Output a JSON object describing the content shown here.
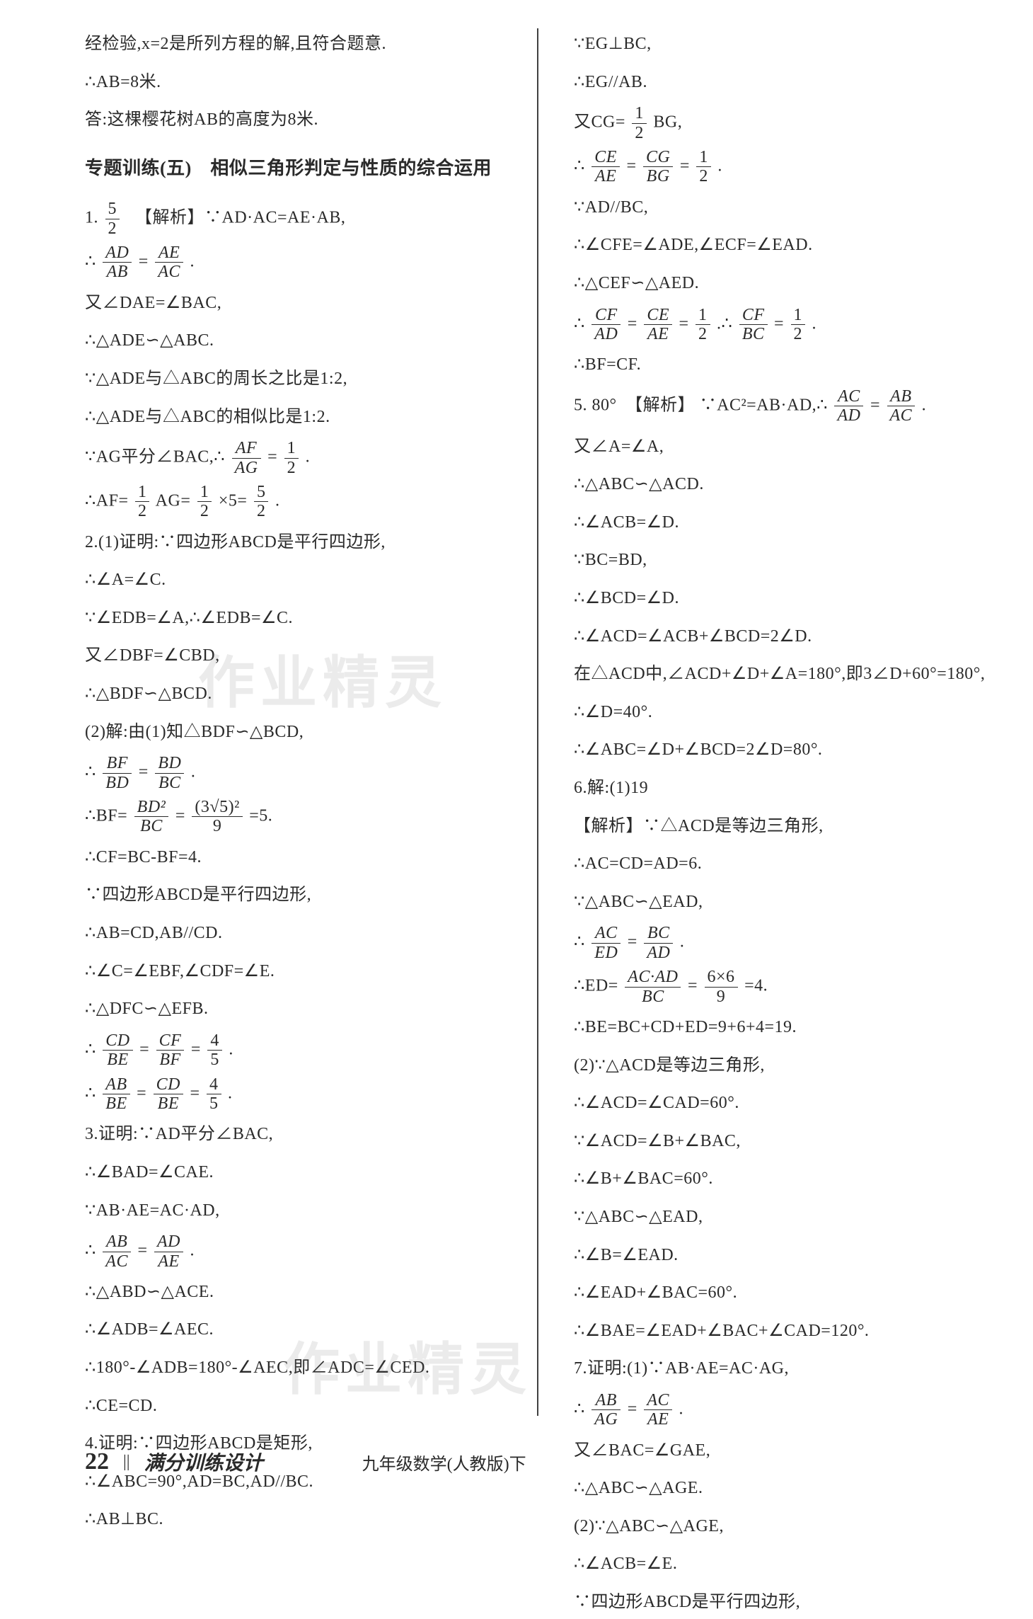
{
  "page_number": "22",
  "book_title": "满分训练设计",
  "subtitle": "九年级数学(人教版)下",
  "watermark_text": "作业精灵",
  "left_column": {
    "intro": [
      "经检验,x=2是所列方程的解,且符合题意.",
      "∴AB=8米.",
      "答:这棵樱花树AB的高度为8米."
    ],
    "heading": "专题训练(五)　相似三角形判定与性质的综合运用",
    "q1": {
      "label": "1.",
      "answer_num": "5",
      "answer_den": "2",
      "analysis_label": "【解析】",
      "lines": [
        "∵AD·AC=AE·AB,",
        "又∠DAE=∠BAC,",
        "∴△ADE∽△ABC.",
        "∵△ADE与△ABC的周长之比是1:2,",
        "∴△ADE与△ABC的相似比是1:2."
      ],
      "frac1": {
        "pre": "∴",
        "n1": "AD",
        "d1": "AB",
        "eq": "=",
        "n2": "AE",
        "d2": "AC",
        "post": "."
      },
      "frac2": {
        "pre": "∵AG平分∠BAC,∴",
        "n1": "AF",
        "d1": "AG",
        "eq": "=",
        "n2": "1",
        "d2": "2",
        "post": "."
      },
      "frac3": {
        "pre": "∴AF=",
        "n1": "1",
        "d1": "2",
        "mid": "AG=",
        "n2": "1",
        "d2": "2",
        "mid2": "×5=",
        "n3": "5",
        "d3": "2",
        "post": "."
      }
    },
    "q2": {
      "label": "2.",
      "lines1": [
        "(1)证明:∵四边形ABCD是平行四边形,",
        "∴∠A=∠C.",
        "∵∠EDB=∠A,∴∠EDB=∠C.",
        "又∠DBF=∠CBD,",
        "∴△BDF∽△BCD.",
        "(2)解:由(1)知△BDF∽△BCD,"
      ],
      "frac1": {
        "pre": "∴",
        "n1": "BF",
        "d1": "BD",
        "eq": "=",
        "n2": "BD",
        "d2": "BC",
        "post": "."
      },
      "frac2": {
        "pre": "∴BF=",
        "n1": "BD²",
        "d1": "BC",
        "eq": "=",
        "n2": "(3√5)²",
        "d2": "9",
        "post": "=5."
      },
      "lines2": [
        "∴CF=BC-BF=4.",
        "∵四边形ABCD是平行四边形,",
        "∴AB=CD,AB//CD.",
        "∴∠C=∠EBF,∠CDF=∠E.",
        "∴△DFC∽△EFB."
      ],
      "frac3": {
        "pre": "∴",
        "n1": "CD",
        "d1": "BE",
        "eq": "=",
        "n2": "CF",
        "d2": "BF",
        "eq2": "=",
        "n3": "4",
        "d3": "5",
        "post": "."
      },
      "frac4": {
        "pre": "∴",
        "n1": "AB",
        "d1": "BE",
        "eq": "=",
        "n2": "CD",
        "d2": "BE",
        "eq2": "=",
        "n3": "4",
        "d3": "5",
        "post": "."
      }
    },
    "q3": {
      "label": "3.",
      "lines1": [
        "证明:∵AD平分∠BAC,",
        "∴∠BAD=∠CAE.",
        "∵AB·AE=AC·AD,"
      ],
      "frac1": {
        "pre": "∴",
        "n1": "AB",
        "d1": "AC",
        "eq": "=",
        "n2": "AD",
        "d2": "AE",
        "post": "."
      },
      "lines2": [
        "∴△ABD∽△ACE.",
        "∴∠ADB=∠AEC.",
        "∴180°-∠ADB=180°-∠AEC,即∠ADC=∠CED.",
        "∴CE=CD."
      ]
    },
    "q4": {
      "label": "4.",
      "lines": [
        "证明:∵四边形ABCD是矩形,",
        "∴∠ABC=90°,AD=BC,AD//BC.",
        "∴AB⊥BC."
      ]
    }
  },
  "right_column": {
    "lines1": [
      "∵EG⊥BC,",
      "∴EG//AB."
    ],
    "frac1": {
      "pre": "又CG=",
      "n": "1",
      "d": "2",
      "post": "BG,"
    },
    "frac2": {
      "pre": "∴",
      "n1": "CE",
      "d1": "AE",
      "eq": "=",
      "n2": "CG",
      "d2": "BG",
      "eq2": "=",
      "n3": "1",
      "d3": "2",
      "post": "."
    },
    "lines2": [
      "∵AD//BC,",
      "∴∠CFE=∠ADE,∠ECF=∠EAD.",
      "∴△CEF∽△AED."
    ],
    "frac3": {
      "pre": "∴",
      "n1": "CF",
      "d1": "AD",
      "eq": "=",
      "n2": "CE",
      "d2": "AE",
      "eq2": "=",
      "n3": "1",
      "d3": "2",
      "post": ".∴",
      "n4": "CF",
      "d4": "BC",
      "eq3": "=",
      "n5": "1",
      "d5": "2",
      "post2": "."
    },
    "lines3": [
      "∴BF=CF."
    ],
    "q5": {
      "label": "5. 80°",
      "analysis": "【解析】",
      "frac1": {
        "pre": "∵AC²=AB·AD,∴",
        "n1": "AC",
        "d1": "AD",
        "eq": "=",
        "n2": "AB",
        "d2": "AC",
        "post": "."
      },
      "lines": [
        "又∠A=∠A,",
        "∴△ABC∽△ACD.",
        "∴∠ACB=∠D.",
        "∵BC=BD,",
        "∴∠BCD=∠D.",
        "∴∠ACD=∠ACB+∠BCD=2∠D.",
        "在△ACD中,∠ACD+∠D+∠A=180°,即3∠D+60°=180°,",
        "∴∠D=40°.",
        "∴∠ABC=∠D+∠BCD=2∠D=80°."
      ]
    },
    "q6": {
      "label": "6.",
      "lines1": [
        "解:(1)19",
        "【解析】∵△ACD是等边三角形,",
        "∴AC=CD=AD=6.",
        "∵△ABC∽△EAD,"
      ],
      "frac1": {
        "pre": "∴",
        "n1": "AC",
        "d1": "ED",
        "eq": "=",
        "n2": "BC",
        "d2": "AD",
        "post": "."
      },
      "frac2": {
        "pre": "∴ED=",
        "n1": "AC·AD",
        "d1": "BC",
        "eq": "=",
        "n2": "6×6",
        "d2": "9",
        "post": "=4."
      },
      "lines2": [
        "∴BE=BC+CD+ED=9+6+4=19.",
        "(2)∵△ACD是等边三角形,",
        "∴∠ACD=∠CAD=60°.",
        "∵∠ACD=∠B+∠BAC,",
        "∴∠B+∠BAC=60°.",
        "∵△ABC∽△EAD,",
        "∴∠B=∠EAD.",
        "∴∠EAD+∠BAC=60°.",
        "∴∠BAE=∠EAD+∠BAC+∠CAD=120°."
      ]
    },
    "q7": {
      "label": "7.",
      "lines1": [
        "证明:(1)∵AB·AE=AC·AG,"
      ],
      "frac1": {
        "pre": "∴",
        "n1": "AB",
        "d1": "AG",
        "eq": "=",
        "n2": "AC",
        "d2": "AE",
        "post": "."
      },
      "lines2": [
        "又∠BAC=∠GAE,",
        "∴△ABC∽△AGE.",
        "(2)∵△ABC∽△AGE,",
        "∴∠ACB=∠E.",
        "∵四边形ABCD是平行四边形,"
      ]
    }
  }
}
